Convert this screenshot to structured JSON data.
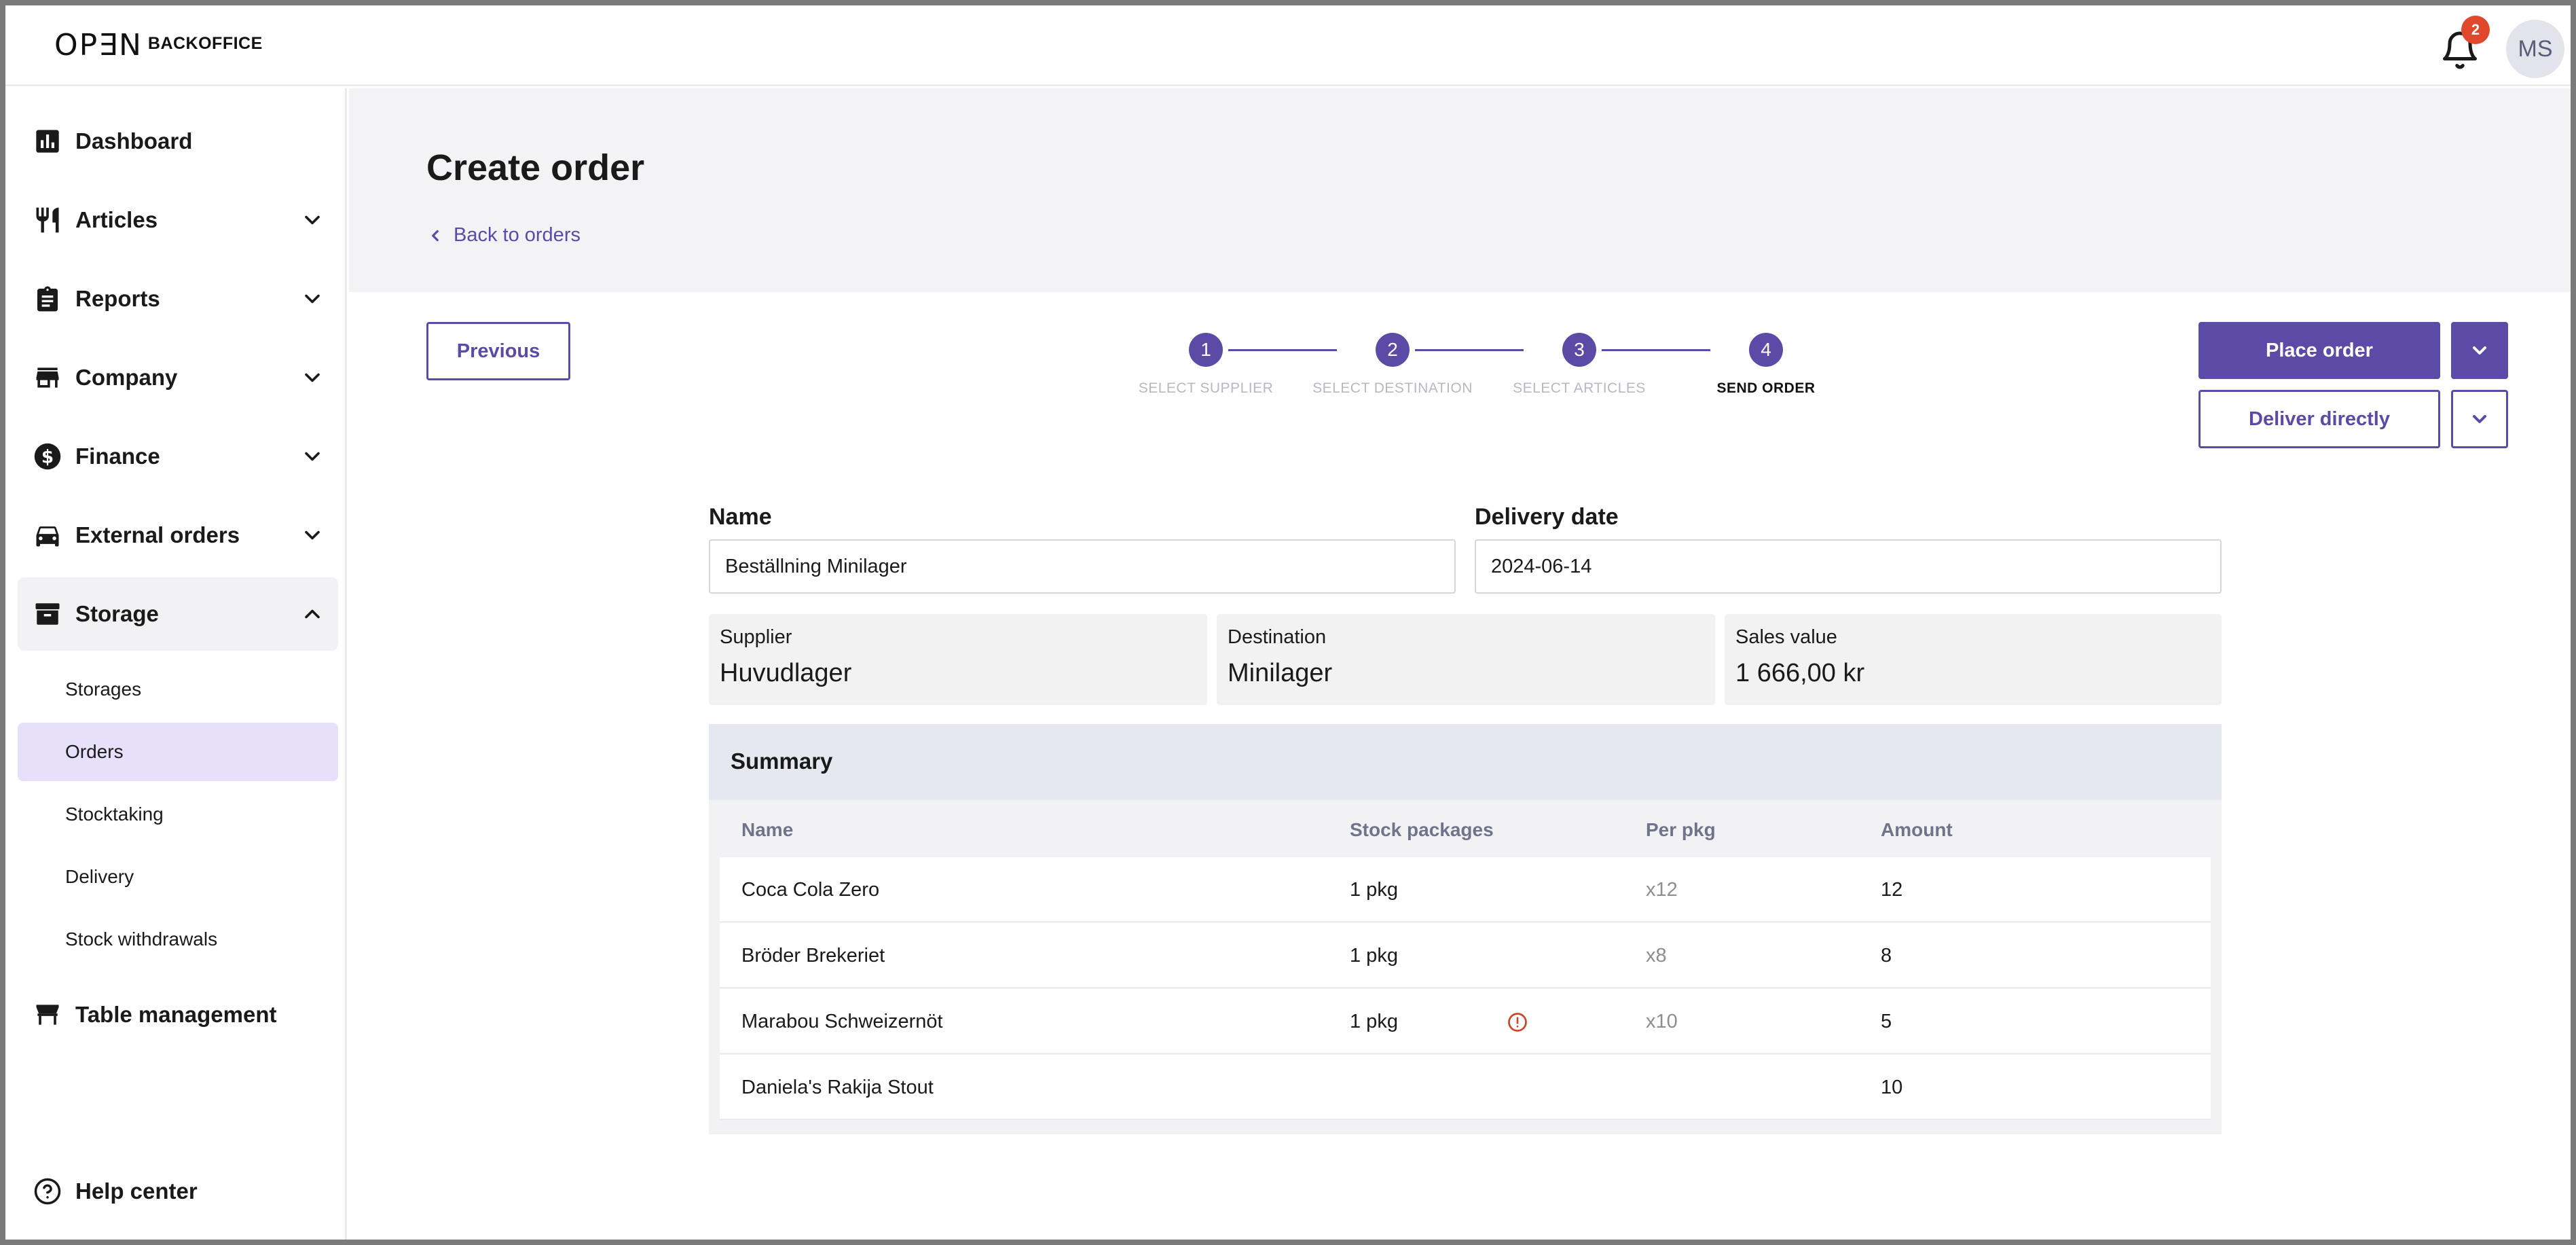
{
  "header": {
    "logo_mark": "OP∃N",
    "logo_text": "BACKOFFICE",
    "notification_count": "2",
    "avatar_initials": "MS"
  },
  "sidebar": {
    "items": [
      {
        "label": "Dashboard",
        "icon": "bar-chart-icon"
      },
      {
        "label": "Articles",
        "icon": "food-icon"
      },
      {
        "label": "Reports",
        "icon": "clipboard-icon"
      },
      {
        "label": "Company",
        "icon": "store-icon"
      },
      {
        "label": "Finance",
        "icon": "dollar-icon"
      },
      {
        "label": "External orders",
        "icon": "car-icon"
      },
      {
        "label": "Storage",
        "icon": "archive-icon"
      }
    ],
    "storage_sub": [
      "Storages",
      "Orders",
      "Stocktaking",
      "Delivery",
      "Stock withdrawals"
    ],
    "table_management": "Table management",
    "help_center": "Help center"
  },
  "page": {
    "title": "Create order",
    "back_label": "Back to orders"
  },
  "toolbar": {
    "previous_label": "Previous",
    "place_order_label": "Place order",
    "deliver_directly_label": "Deliver directly"
  },
  "stepper": {
    "steps": [
      {
        "number": "1",
        "label": "SELECT SUPPLIER"
      },
      {
        "number": "2",
        "label": "SELECT DESTINATION"
      },
      {
        "number": "3",
        "label": "SELECT ARTICLES"
      },
      {
        "number": "4",
        "label": "SEND ORDER"
      }
    ],
    "current_step": 4
  },
  "form": {
    "name_label": "Name",
    "name_value": "Beställning Minilager",
    "delivery_date_label": "Delivery date",
    "delivery_date_value": "2024-06-14"
  },
  "info": {
    "supplier_label": "Supplier",
    "supplier_value": "Huvudlager",
    "destination_label": "Destination",
    "destination_value": "Minilager",
    "sales_value_label": "Sales value",
    "sales_value_value": "1 666,00 kr"
  },
  "summary": {
    "title": "Summary",
    "columns": [
      "Name",
      "Stock packages",
      "Per pkg",
      "Amount"
    ],
    "rows": [
      {
        "name": "Coca Cola Zero",
        "packages": "1 pkg",
        "per_pkg": "x12",
        "amount": "12"
      },
      {
        "name": "Bröder Brekeriet",
        "packages": "1 pkg",
        "per_pkg": "x8",
        "amount": "8"
      },
      {
        "name": "Marabou Schweizernöt",
        "packages": "1 pkg",
        "per_pkg": "x10",
        "amount": "5"
      },
      {
        "name": "Daniela's Rakija Stout",
        "packages": "",
        "per_pkg": "",
        "amount": "10"
      }
    ]
  },
  "colors": {
    "accent": "#5b4aa6",
    "active_sub_bg": "#e6e0fb",
    "badge": "#e0482b",
    "warning": "#d0452a"
  }
}
